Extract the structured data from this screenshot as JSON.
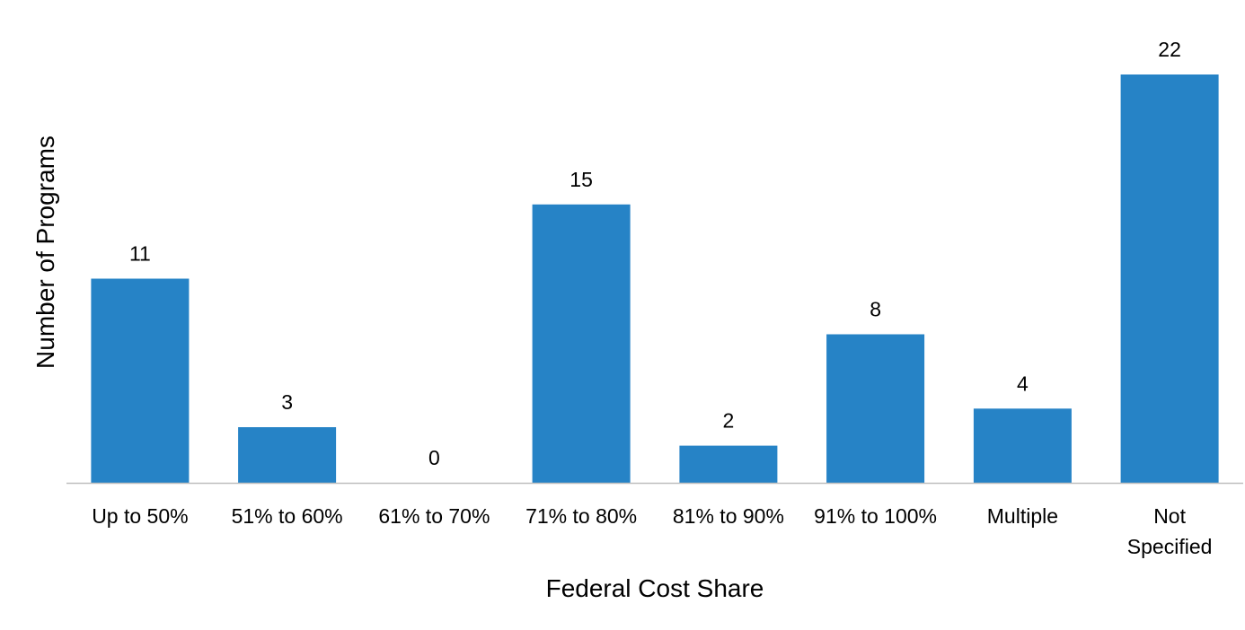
{
  "chart_data": {
    "type": "bar",
    "categories": [
      "Up to 50%",
      "51% to 60%",
      "61% to 70%",
      "71% to 80%",
      "81% to 90%",
      "91% to 100%",
      "Multiple",
      "Not Specified"
    ],
    "values": [
      11,
      3,
      0,
      15,
      2,
      8,
      4,
      22
    ],
    "title": "",
    "xlabel": "Federal Cost Share",
    "ylabel": "Number of Programs",
    "ylim": [
      0,
      22
    ],
    "grid": false,
    "legend": "none",
    "bar_color": "#2683C6",
    "axis_color": "#BFBFBF"
  }
}
